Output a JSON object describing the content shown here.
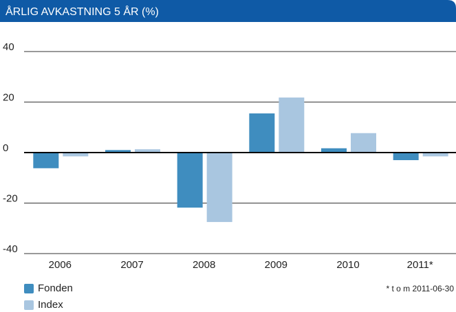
{
  "chart_data": {
    "type": "bar",
    "title": "ÅRLIG AVKASTNING 5 ÅR (%)",
    "categories": [
      "2006",
      "2007",
      "2008",
      "2009",
      "2010",
      "2011*"
    ],
    "series": [
      {
        "name": "Fonden",
        "color": "#3f8dbf",
        "values": [
          -6.2,
          1,
          -21.8,
          15.5,
          1.7,
          -3
        ]
      },
      {
        "name": "Index",
        "color": "#a9c6e0",
        "values": [
          -1.5,
          1.3,
          -27.5,
          21.8,
          7.7,
          -1.5
        ]
      }
    ],
    "ylim": [
      -40,
      40
    ],
    "yticks": [
      -40,
      -20,
      0,
      20,
      40
    ],
    "grid": true,
    "legend": "bottom-left",
    "annotation": "* t o m 2011-06-30"
  }
}
